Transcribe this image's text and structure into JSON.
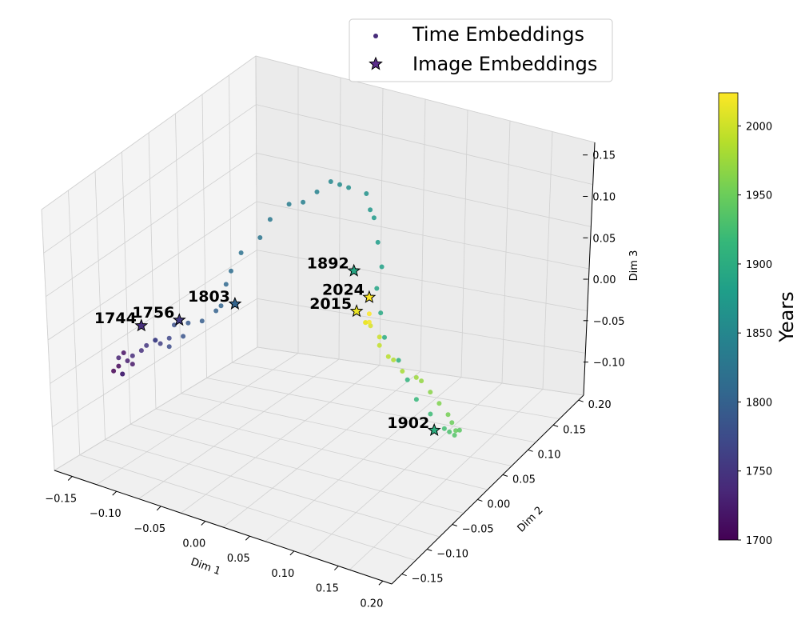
{
  "chart_data": {
    "type": "scatter",
    "projection": "3d",
    "grid": true,
    "legend_placement": "top-center",
    "legend": [
      {
        "label": "Time Embeddings",
        "marker": "dot"
      },
      {
        "label": "Image Embeddings",
        "marker": "star"
      }
    ],
    "axes": {
      "x": {
        "label": "Dim 1",
        "ticks": [
          "−0.15",
          "−0.10",
          "−0.05",
          "0.00",
          "0.05",
          "0.10",
          "0.15",
          "0.20"
        ],
        "lim": [
          -0.17,
          0.21
        ]
      },
      "y": {
        "label": "Dim 2",
        "ticks": [
          "−0.15",
          "−0.10",
          "−0.05",
          "0.00",
          "0.05",
          "0.10",
          "0.15",
          "0.20"
        ],
        "lim": [
          -0.17,
          0.21
        ]
      },
      "z": {
        "label": "Dim 3",
        "ticks": [
          "−0.10",
          "−0.05",
          "0.00",
          "0.05",
          "0.10",
          "0.15"
        ],
        "lim": [
          -0.14,
          0.17
        ]
      }
    },
    "colorbar": {
      "label": "Years",
      "min": 1700,
      "max": 2024,
      "ticks": [
        "1700",
        "1750",
        "1800",
        "1850",
        "1900",
        "1950",
        "2000"
      ],
      "colormap": "viridis",
      "stops": [
        "#440154",
        "#482878",
        "#3e4989",
        "#31688e",
        "#26828e",
        "#1f9e89",
        "#35b779",
        "#6ece58",
        "#b5de2b",
        "#fde725"
      ]
    },
    "image_embeddings": [
      {
        "label": "1744",
        "year": 1744,
        "x": -0.1,
        "y": -0.12,
        "z": 0.03
      },
      {
        "label": "1756",
        "year": 1756,
        "x": -0.08,
        "y": -0.08,
        "z": 0.02
      },
      {
        "label": "1803",
        "year": 1803,
        "x": -0.04,
        "y": -0.04,
        "z": 0.03
      },
      {
        "label": "1892",
        "year": 1892,
        "x": 0.06,
        "y": 0.02,
        "z": 0.07
      },
      {
        "label": "1902",
        "year": 1902,
        "x": 0.15,
        "y": 0.02,
        "z": -0.09
      },
      {
        "label": "2015",
        "year": 2015,
        "x": 0.04,
        "y": 0.06,
        "z": -0.01
      },
      {
        "label": "2024",
        "year": 2024,
        "x": 0.06,
        "y": 0.05,
        "z": 0.02
      }
    ],
    "time_embeddings": [
      [
        1700,
        -0.12,
        -0.14,
        -0.02
      ],
      [
        1705,
        -0.12,
        -0.13,
        -0.02
      ],
      [
        1710,
        -0.11,
        -0.14,
        -0.02
      ],
      [
        1715,
        -0.12,
        -0.12,
        -0.01
      ],
      [
        1720,
        -0.11,
        -0.12,
        -0.02
      ],
      [
        1725,
        -0.11,
        -0.13,
        -0.01
      ],
      [
        1730,
        -0.12,
        -0.13,
        -0.01
      ],
      [
        1735,
        -0.11,
        -0.14,
        -0.02
      ],
      [
        1740,
        -0.11,
        -0.12,
        -0.01
      ],
      [
        1745,
        -0.1,
        -0.12,
        0.0
      ],
      [
        1750,
        -0.1,
        -0.11,
        0.0
      ],
      [
        1755,
        -0.09,
        -0.11,
        0.01
      ],
      [
        1760,
        -0.09,
        -0.1,
        0.0
      ],
      [
        1765,
        -0.09,
        -0.11,
        0.01
      ],
      [
        1770,
        -0.08,
        -0.1,
        0.01
      ],
      [
        1775,
        -0.08,
        -0.1,
        0.0
      ],
      [
        1780,
        -0.08,
        -0.09,
        0.02
      ],
      [
        1785,
        -0.07,
        -0.09,
        0.01
      ],
      [
        1790,
        -0.07,
        -0.08,
        0.02
      ],
      [
        1795,
        -0.06,
        -0.07,
        0.02
      ],
      [
        1800,
        -0.05,
        -0.06,
        0.03
      ],
      [
        1805,
        -0.05,
        -0.05,
        0.03
      ],
      [
        1810,
        -0.05,
        -0.04,
        0.05
      ],
      [
        1815,
        -0.05,
        -0.03,
        0.06
      ],
      [
        1820,
        -0.05,
        -0.01,
        0.07
      ],
      [
        1825,
        -0.04,
        0.01,
        0.08
      ],
      [
        1830,
        -0.04,
        0.03,
        0.09
      ],
      [
        1835,
        -0.03,
        0.05,
        0.1
      ],
      [
        1840,
        -0.02,
        0.06,
        0.1
      ],
      [
        1845,
        -0.01,
        0.07,
        0.11
      ],
      [
        1850,
        0.0,
        0.08,
        0.12
      ],
      [
        1855,
        0.01,
        0.08,
        0.12
      ],
      [
        1860,
        0.02,
        0.08,
        0.12
      ],
      [
        1865,
        0.04,
        0.08,
        0.12
      ],
      [
        1870,
        0.05,
        0.07,
        0.11
      ],
      [
        1875,
        0.06,
        0.06,
        0.11
      ],
      [
        1880,
        0.07,
        0.05,
        0.09
      ],
      [
        1885,
        0.08,
        0.04,
        0.07
      ],
      [
        1890,
        0.08,
        0.03,
        0.05
      ],
      [
        1895,
        0.09,
        0.02,
        0.03
      ],
      [
        1900,
        0.1,
        0.01,
        0.01
      ],
      [
        1905,
        0.11,
        0.02,
        -0.02
      ],
      [
        1910,
        0.12,
        0.02,
        -0.04
      ],
      [
        1915,
        0.13,
        0.02,
        -0.06
      ],
      [
        1920,
        0.14,
        0.03,
        -0.08
      ],
      [
        1925,
        0.15,
        0.04,
        -0.1
      ],
      [
        1930,
        0.15,
        0.05,
        -0.11
      ],
      [
        1935,
        0.15,
        0.06,
        -0.12
      ],
      [
        1940,
        0.15,
        0.07,
        -0.12
      ],
      [
        1945,
        0.14,
        0.08,
        -0.13
      ],
      [
        1950,
        0.13,
        0.09,
        -0.13
      ],
      [
        1955,
        0.12,
        0.1,
        -0.13
      ],
      [
        1960,
        0.11,
        0.1,
        -0.12
      ],
      [
        1965,
        0.1,
        0.1,
        -0.11
      ],
      [
        1970,
        0.09,
        0.1,
        -0.1
      ],
      [
        1975,
        0.09,
        0.09,
        -0.09
      ],
      [
        1980,
        0.08,
        0.08,
        -0.08
      ],
      [
        1985,
        0.07,
        0.08,
        -0.07
      ],
      [
        1990,
        0.07,
        0.07,
        -0.06
      ],
      [
        1995,
        0.06,
        0.07,
        -0.05
      ],
      [
        2000,
        0.06,
        0.07,
        -0.04
      ],
      [
        2005,
        0.05,
        0.07,
        -0.03
      ],
      [
        2010,
        0.05,
        0.06,
        -0.02
      ],
      [
        2015,
        0.05,
        0.06,
        -0.02
      ],
      [
        2020,
        0.06,
        0.05,
        -0.01
      ],
      [
        2024,
        0.06,
        0.05,
        0.0
      ]
    ]
  }
}
